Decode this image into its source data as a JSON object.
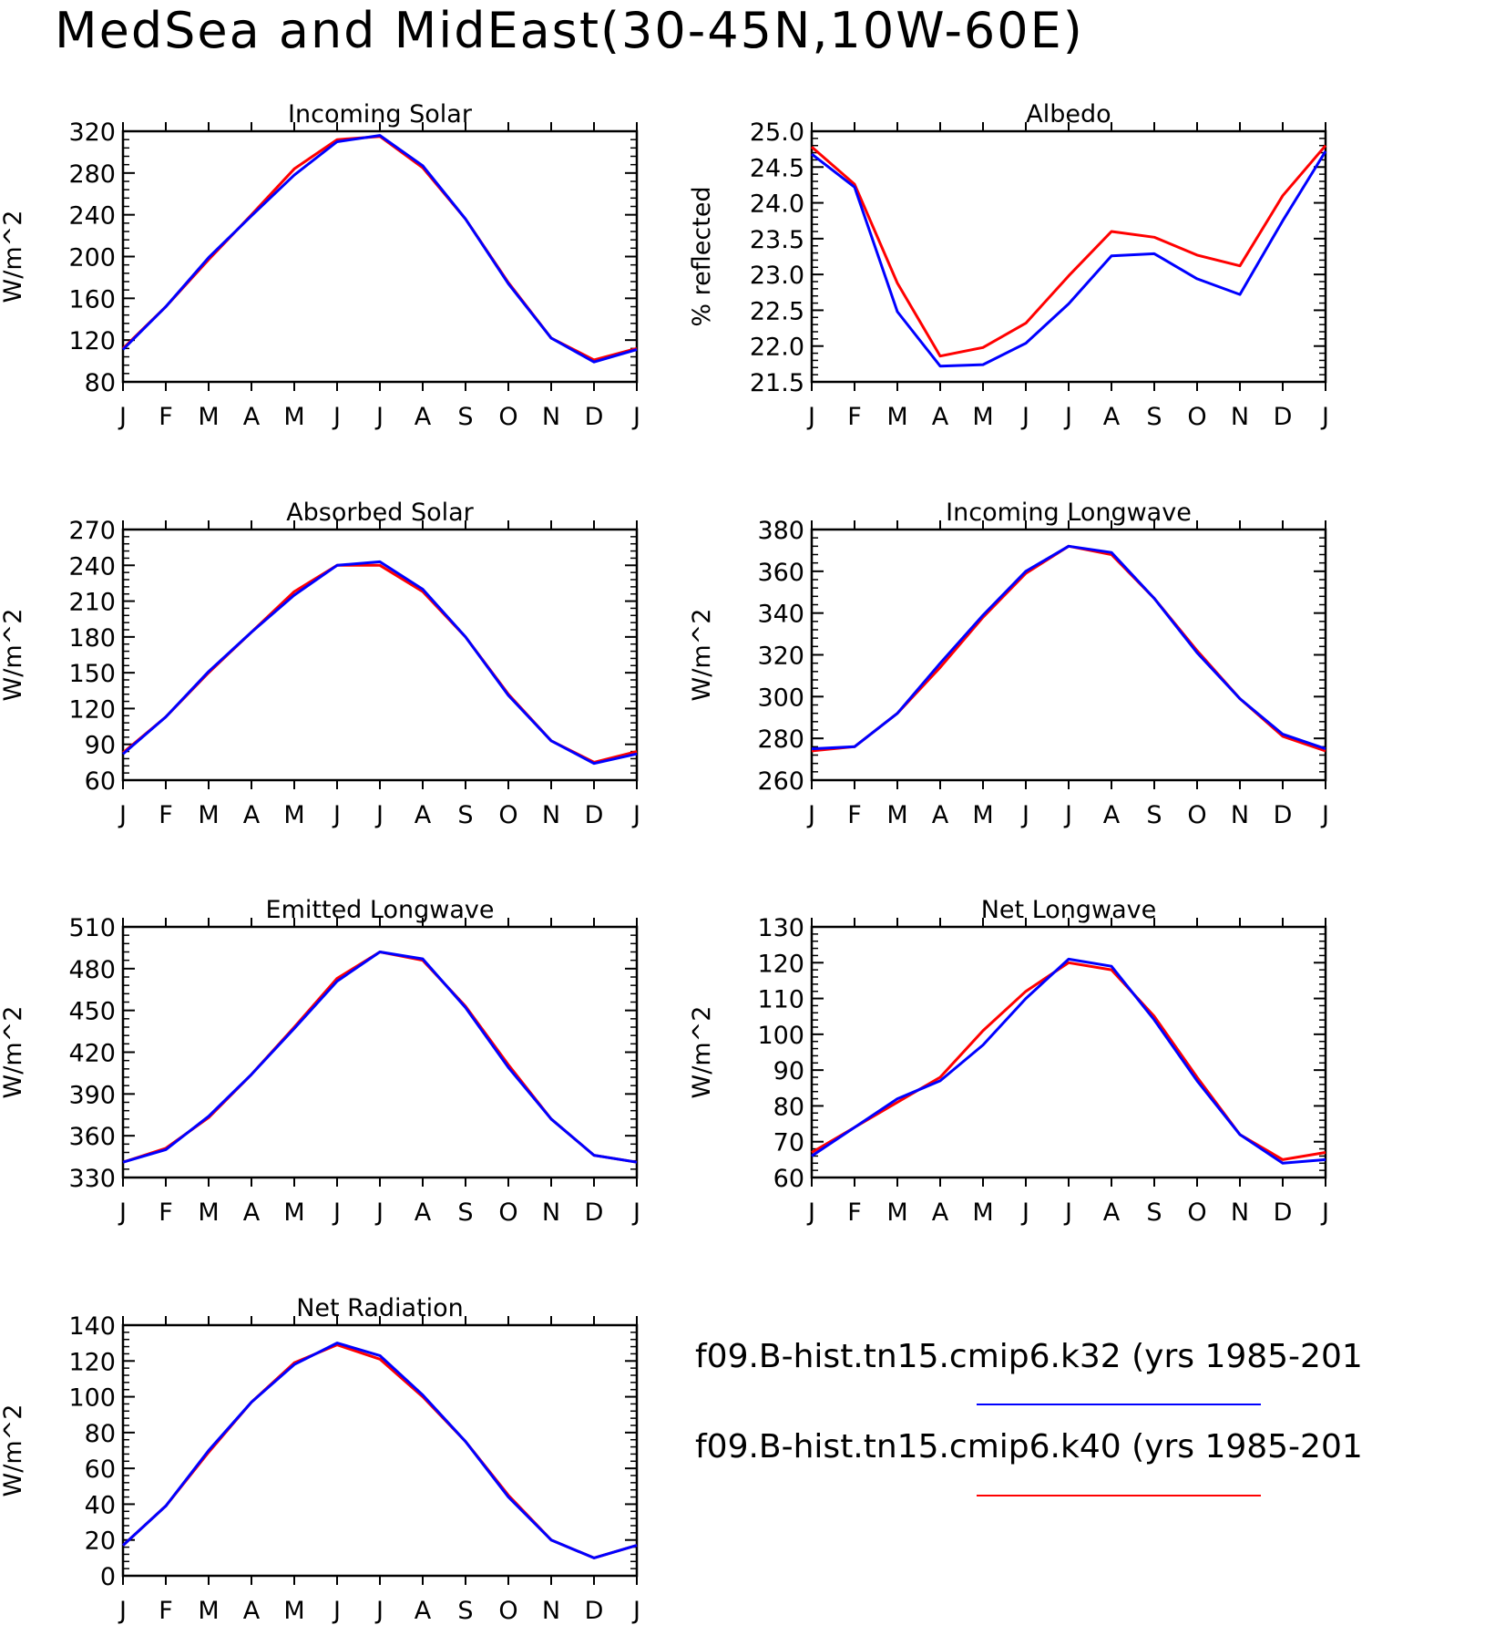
{
  "title": "MedSea and MidEast(30-45N,10W-60E)",
  "colors": {
    "k32": "#0000ff",
    "k40": "#ff0000"
  },
  "legend": [
    {
      "label": "f09.B-hist.tn15.cmip6.k32 (yrs 1985-201",
      "color": "#0000ff"
    },
    {
      "label": "f09.B-hist.tn15.cmip6.k40 (yrs 1985-201",
      "color": "#ff0000"
    }
  ],
  "chart_data": [
    {
      "type": "line",
      "title": "Incoming Solar",
      "ylabel": "W/m^2",
      "categories": [
        "J",
        "F",
        "M",
        "A",
        "M",
        "J",
        "J",
        "A",
        "S",
        "O",
        "N",
        "D",
        "J"
      ],
      "ylim": [
        80,
        320
      ],
      "yticks": [
        80,
        120,
        160,
        200,
        240,
        280,
        320
      ],
      "yticklabels": [
        "80",
        "120",
        "160",
        "200",
        "240",
        "280",
        "320"
      ],
      "series": [
        {
          "name": "f09.B-hist.tn15.cmip6.k40 (yrs 1985-201",
          "color": "#ff0000",
          "values": [
            112,
            152,
            197,
            240,
            284,
            312,
            315,
            285,
            236,
            175,
            122,
            101,
            112
          ]
        },
        {
          "name": "f09.B-hist.tn15.cmip6.k32 (yrs 1985-201",
          "color": "#0000ff",
          "values": [
            111,
            152,
            199,
            239,
            278,
            310,
            316,
            287,
            236,
            174,
            122,
            99,
            111
          ]
        }
      ]
    },
    {
      "type": "line",
      "title": "Albedo",
      "ylabel": "% reflected",
      "categories": [
        "J",
        "F",
        "M",
        "A",
        "M",
        "J",
        "J",
        "A",
        "S",
        "O",
        "N",
        "D",
        "J"
      ],
      "ylim": [
        21.5,
        25.0
      ],
      "yticks": [
        21.5,
        22.0,
        22.5,
        23.0,
        23.5,
        24.0,
        24.5,
        25.0
      ],
      "yticklabels": [
        "21.5",
        "22.0",
        "22.5",
        "23.0",
        "23.5",
        "24.0",
        "24.5",
        "25.0"
      ],
      "series": [
        {
          "name": "f09.B-hist.tn15.cmip6.k40 (yrs 1985-201",
          "color": "#ff0000",
          "values": [
            24.78,
            24.26,
            22.88,
            21.86,
            21.98,
            22.32,
            22.98,
            23.6,
            23.52,
            23.27,
            23.12,
            24.1,
            24.8
          ]
        },
        {
          "name": "f09.B-hist.tn15.cmip6.k32 (yrs 1985-201",
          "color": "#0000ff",
          "values": [
            24.68,
            24.22,
            22.48,
            21.72,
            21.74,
            22.04,
            22.59,
            23.26,
            23.29,
            22.94,
            22.72,
            23.75,
            24.72
          ]
        }
      ]
    },
    {
      "type": "line",
      "title": "Absorbed Solar",
      "ylabel": "W/m^2",
      "categories": [
        "J",
        "F",
        "M",
        "A",
        "M",
        "J",
        "J",
        "A",
        "S",
        "O",
        "N",
        "D",
        "J"
      ],
      "ylim": [
        60,
        270
      ],
      "yticks": [
        60,
        90,
        120,
        150,
        180,
        210,
        240,
        270
      ],
      "yticklabels": [
        "60",
        "90",
        "120",
        "150",
        "180",
        "210",
        "240",
        "270"
      ],
      "series": [
        {
          "name": "f09.B-hist.tn15.cmip6.k40 (yrs 1985-201",
          "color": "#ff0000",
          "values": [
            83,
            113,
            150,
            184,
            218,
            240,
            240,
            218,
            180,
            132,
            93,
            75,
            84
          ]
        },
        {
          "name": "f09.B-hist.tn15.cmip6.k32 (yrs 1985-201",
          "color": "#0000ff",
          "values": [
            82,
            113,
            151,
            184,
            215,
            240,
            243,
            220,
            180,
            131,
            93,
            74,
            82
          ]
        }
      ]
    },
    {
      "type": "line",
      "title": "Incoming Longwave",
      "ylabel": "W/m^2",
      "categories": [
        "J",
        "F",
        "M",
        "A",
        "M",
        "J",
        "J",
        "A",
        "S",
        "O",
        "N",
        "D",
        "J"
      ],
      "ylim": [
        260,
        380
      ],
      "yticks": [
        260,
        280,
        300,
        320,
        340,
        360,
        380
      ],
      "yticklabels": [
        "260",
        "280",
        "300",
        "320",
        "340",
        "360",
        "380"
      ],
      "series": [
        {
          "name": "f09.B-hist.tn15.cmip6.k40 (yrs 1985-201",
          "color": "#ff0000",
          "values": [
            274,
            276,
            292,
            314,
            338,
            359,
            372,
            368,
            347,
            322,
            299,
            281,
            274
          ]
        },
        {
          "name": "f09.B-hist.tn15.cmip6.k32 (yrs 1985-201",
          "color": "#0000ff",
          "values": [
            275,
            276,
            292,
            316,
            339,
            360,
            372,
            369,
            347,
            321,
            299,
            282,
            275
          ]
        }
      ]
    },
    {
      "type": "line",
      "title": "Emitted Longwave",
      "ylabel": "W/m^2",
      "categories": [
        "J",
        "F",
        "M",
        "A",
        "M",
        "J",
        "J",
        "A",
        "S",
        "O",
        "N",
        "D",
        "J"
      ],
      "ylim": [
        330,
        510
      ],
      "yticks": [
        330,
        360,
        390,
        420,
        450,
        480,
        510
      ],
      "yticklabels": [
        "330",
        "360",
        "390",
        "420",
        "450",
        "480",
        "510"
      ],
      "series": [
        {
          "name": "f09.B-hist.tn15.cmip6.k40 (yrs 1985-201",
          "color": "#ff0000",
          "values": [
            341,
            351,
            373,
            404,
            438,
            473,
            492,
            486,
            453,
            411,
            372,
            346,
            341
          ]
        },
        {
          "name": "f09.B-hist.tn15.cmip6.k32 (yrs 1985-201",
          "color": "#0000ff",
          "values": [
            341,
            350,
            374,
            404,
            437,
            471,
            492,
            487,
            452,
            409,
            372,
            346,
            341
          ]
        }
      ]
    },
    {
      "type": "line",
      "title": "Net Longwave",
      "ylabel": "W/m^2",
      "categories": [
        "J",
        "F",
        "M",
        "A",
        "M",
        "J",
        "J",
        "A",
        "S",
        "O",
        "N",
        "D",
        "J"
      ],
      "ylim": [
        60,
        130
      ],
      "yticks": [
        60,
        70,
        80,
        90,
        100,
        110,
        120,
        130
      ],
      "yticklabels": [
        "60",
        "70",
        "80",
        "90",
        "100",
        "110",
        "120",
        "130"
      ],
      "series": [
        {
          "name": "f09.B-hist.tn15.cmip6.k40 (yrs 1985-201",
          "color": "#ff0000",
          "values": [
            67,
            74,
            81,
            88,
            101,
            112,
            120,
            118,
            105,
            88,
            72,
            65,
            67
          ]
        },
        {
          "name": "f09.B-hist.tn15.cmip6.k32 (yrs 1985-201",
          "color": "#0000ff",
          "values": [
            66,
            74,
            82,
            87,
            97,
            110,
            121,
            119,
            104,
            87,
            72,
            64,
            65
          ]
        }
      ]
    },
    {
      "type": "line",
      "title": "Net Radiation",
      "ylabel": "W/m^2",
      "categories": [
        "J",
        "F",
        "M",
        "A",
        "M",
        "J",
        "J",
        "A",
        "S",
        "O",
        "N",
        "D",
        "J"
      ],
      "ylim": [
        0,
        140
      ],
      "yticks": [
        0,
        20,
        40,
        60,
        80,
        100,
        120,
        140
      ],
      "yticklabels": [
        "0",
        "20",
        "40",
        "60",
        "80",
        "100",
        "120",
        "140"
      ],
      "series": [
        {
          "name": "f09.B-hist.tn15.cmip6.k40 (yrs 1985-201",
          "color": "#ff0000",
          "values": [
            17,
            39,
            69,
            97,
            119,
            129,
            121,
            100,
            75,
            45,
            20,
            10,
            17
          ]
        },
        {
          "name": "f09.B-hist.tn15.cmip6.k32 (yrs 1985-201",
          "color": "#0000ff",
          "values": [
            17,
            39,
            70,
            97,
            118,
            130,
            123,
            101,
            75,
            44,
            20,
            10,
            17
          ]
        }
      ]
    }
  ]
}
